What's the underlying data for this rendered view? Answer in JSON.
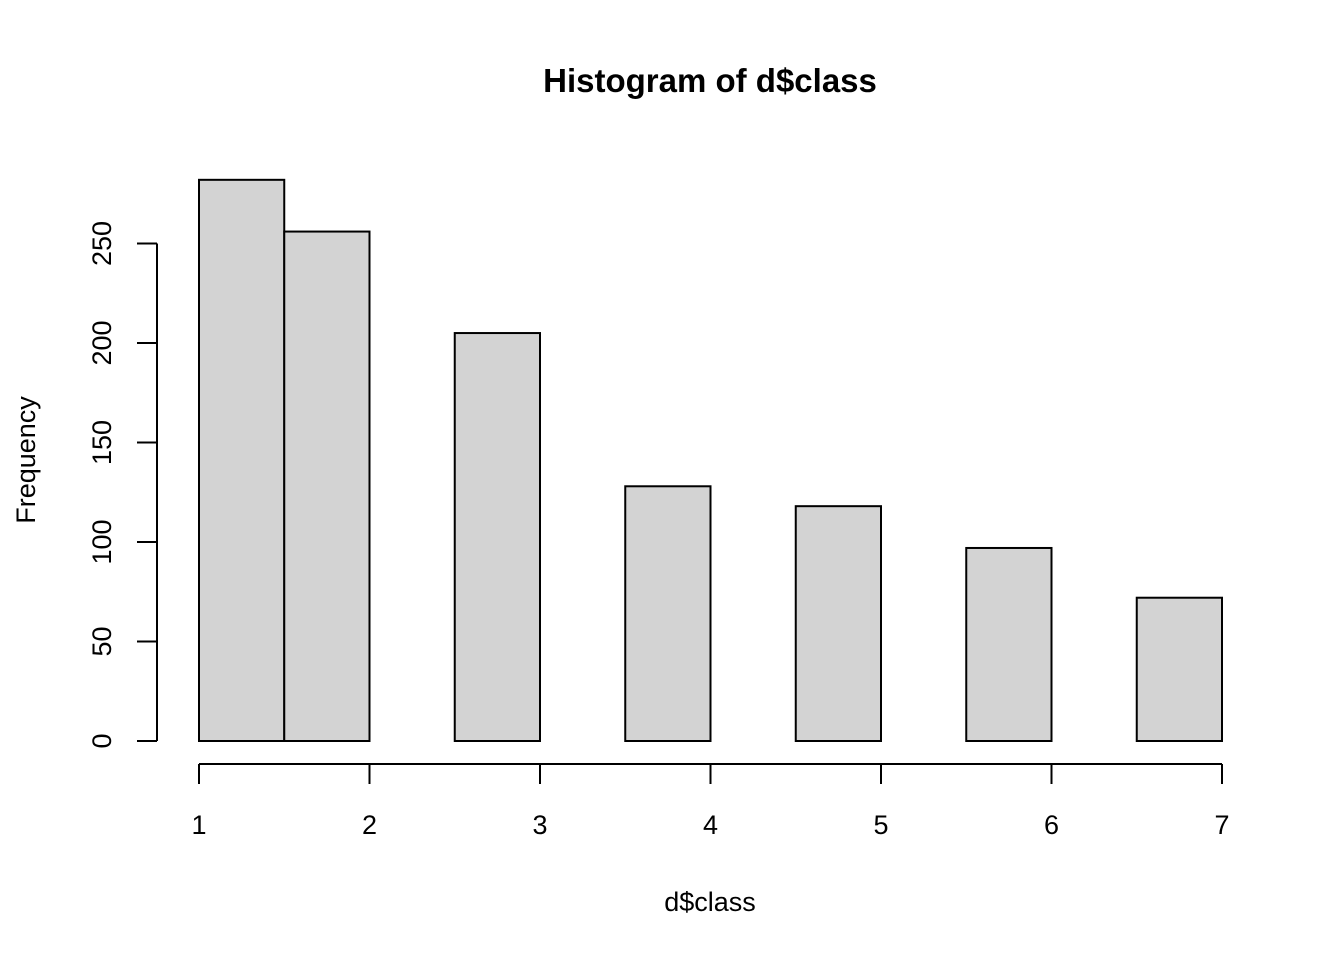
{
  "chart_data": {
    "type": "bar",
    "title": "Histogram of d$class",
    "xlabel": "d$class",
    "ylabel": "Frequency",
    "bins": [
      {
        "x0": 1.0,
        "x1": 1.5,
        "count": 282
      },
      {
        "x0": 1.5,
        "x1": 2.0,
        "count": 256
      },
      {
        "x0": 2.0,
        "x1": 2.5,
        "count": 0
      },
      {
        "x0": 2.5,
        "x1": 3.0,
        "count": 205
      },
      {
        "x0": 3.0,
        "x1": 3.5,
        "count": 0
      },
      {
        "x0": 3.5,
        "x1": 4.0,
        "count": 128
      },
      {
        "x0": 4.0,
        "x1": 4.5,
        "count": 0
      },
      {
        "x0": 4.5,
        "x1": 5.0,
        "count": 118
      },
      {
        "x0": 5.0,
        "x1": 5.5,
        "count": 0
      },
      {
        "x0": 5.5,
        "x1": 6.0,
        "count": 97
      },
      {
        "x0": 6.0,
        "x1": 6.5,
        "count": 0
      },
      {
        "x0": 6.5,
        "x1": 7.0,
        "count": 72
      }
    ],
    "xlim": [
      1,
      7
    ],
    "ylim": [
      0,
      282
    ],
    "xticks": [
      "1",
      "2",
      "3",
      "4",
      "5",
      "6",
      "7"
    ],
    "yticks": [
      "0",
      "50",
      "100",
      "150",
      "200",
      "250"
    ],
    "grid": false,
    "colors": {
      "bar_fill": "#d3d3d3",
      "bar_stroke": "#000000"
    }
  }
}
